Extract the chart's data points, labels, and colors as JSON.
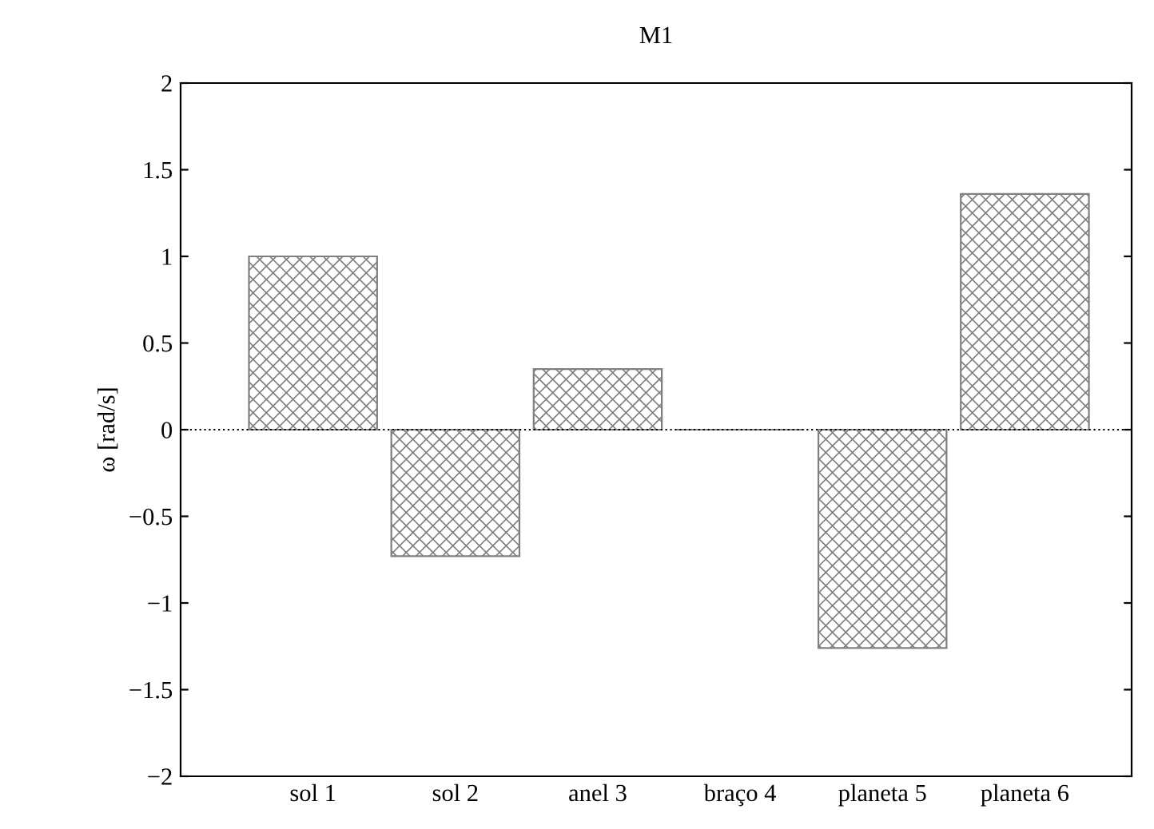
{
  "chart_data": {
    "type": "bar",
    "title": "M1",
    "ylabel": "ω [rad/s]",
    "categories": [
      "sol 1",
      "sol 2",
      "anel 3",
      "braço 4",
      "planeta 5",
      "planeta 6"
    ],
    "values": [
      1.0,
      -0.73,
      0.35,
      0.0,
      -1.26,
      1.36
    ],
    "color": "#808080",
    "ylim": [
      -2,
      2
    ],
    "yticks": [
      {
        "value": -2,
        "label": "−2"
      },
      {
        "value": -1.5,
        "label": "−1.5"
      },
      {
        "value": -1,
        "label": "−1"
      },
      {
        "value": -0.5,
        "label": "−0.5"
      },
      0,
      0.5,
      1,
      1.5,
      2
    ],
    "ref_lines": [
      {
        "axis": "y",
        "value": 0,
        "line_style": "dotted",
        "color": "#000000"
      }
    ],
    "grid": false,
    "legend": false
  }
}
